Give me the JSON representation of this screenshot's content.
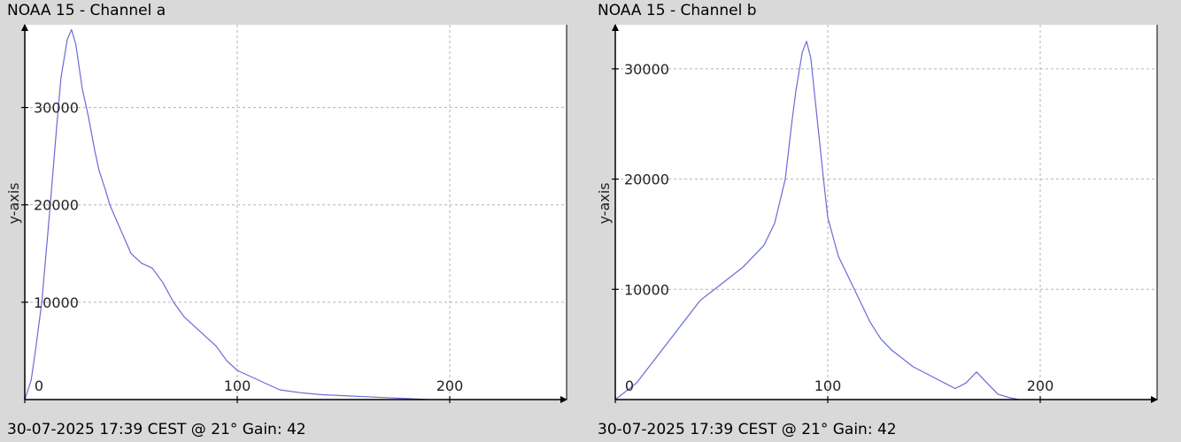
{
  "footer_text": "30-07-2025 17:39 CEST @ 21° Gain: 42",
  "colors": {
    "background": "#d9d9d9",
    "plot_area": "#ffffff",
    "line": "#6a6ad8",
    "grid": "#b3b3b3",
    "axis": "#000000"
  },
  "panels": [
    {
      "title": "NOAA 15 - Channel a",
      "footer": "30-07-2025 17:39 CEST @ 21° Gain: 42"
    },
    {
      "title": "NOAA 15 - Channel b",
      "footer": "30-07-2025 17:39 CEST @ 21° Gain: 42"
    }
  ],
  "chart_data": [
    {
      "type": "line",
      "title": "NOAA 15 - Channel a",
      "xlabel": "",
      "ylabel": "y-axis",
      "xlim": [
        0,
        255
      ],
      "ylim": [
        0,
        38500
      ],
      "x_ticks": [
        0,
        100,
        200
      ],
      "y_ticks": [
        10000,
        20000,
        30000
      ],
      "grid": true,
      "x": [
        0,
        3,
        5,
        8,
        10,
        12,
        15,
        17,
        20,
        22,
        24,
        27,
        30,
        33,
        35,
        38,
        40,
        45,
        48,
        50,
        55,
        60,
        65,
        70,
        75,
        80,
        85,
        90,
        95,
        100,
        110,
        120,
        130,
        140,
        150,
        160,
        170,
        180,
        190
      ],
      "y": [
        0,
        2000,
        5000,
        10000,
        15000,
        20000,
        28000,
        33000,
        37000,
        38000,
        36500,
        32000,
        29000,
        25500,
        23500,
        21500,
        20000,
        17500,
        16000,
        15000,
        14000,
        13500,
        12000,
        10000,
        8500,
        7500,
        6500,
        5500,
        4000,
        3000,
        2000,
        1000,
        700,
        500,
        400,
        300,
        200,
        100,
        0
      ]
    },
    {
      "type": "line",
      "title": "NOAA 15 - Channel b",
      "xlabel": "",
      "ylabel": "y-axis",
      "xlim": [
        0,
        255
      ],
      "ylim": [
        0,
        34000
      ],
      "x_ticks": [
        0,
        100,
        200
      ],
      "y_ticks": [
        10000,
        20000,
        30000
      ],
      "grid": true,
      "x": [
        0,
        10,
        20,
        30,
        40,
        50,
        60,
        70,
        75,
        80,
        83,
        85,
        88,
        90,
        92,
        95,
        98,
        100,
        105,
        110,
        115,
        120,
        125,
        130,
        140,
        150,
        155,
        160,
        165,
        170,
        175,
        180,
        185,
        190
      ],
      "y": [
        0,
        1500,
        4000,
        6500,
        9000,
        10500,
        12000,
        14000,
        16000,
        20000,
        25000,
        28000,
        31500,
        32500,
        31000,
        25500,
        20000,
        16500,
        13000,
        11000,
        9000,
        7000,
        5500,
        4500,
        3000,
        2000,
        1500,
        1000,
        1500,
        2500,
        1500,
        500,
        200,
        0
      ]
    }
  ]
}
